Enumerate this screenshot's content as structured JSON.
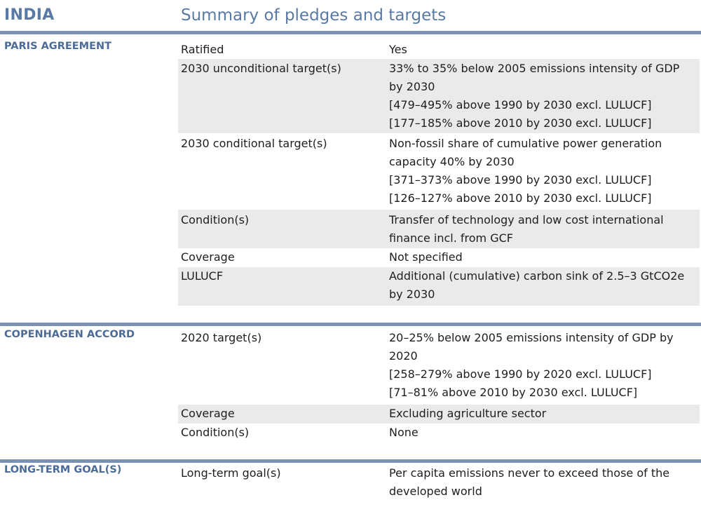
{
  "header": {
    "country": "INDIA",
    "subtitle": "Summary of pledges and targets"
  },
  "sections": [
    {
      "title": "PARIS AGREEMENT",
      "rows": [
        {
          "label": "Ratified",
          "values": [
            "Yes"
          ]
        },
        {
          "label": "2030 unconditional target(s)",
          "values": [
            "33% to 35% below 2005 emissions intensity of GDP by 2030",
            "[479–495% above 1990 by 2030 excl. LULUCF]",
            "[177–185% above 2010 by 2030 excl. LULUCF]"
          ]
        },
        {
          "label": "2030 conditional target(s)",
          "values": [
            "Non-fossil share of cumulative power generation capacity 40% by 2030",
            "[371–373% above 1990 by 2030 excl. LULUCF]",
            "[126–127% above 2010 by 2030 excl. LULUCF]"
          ]
        },
        {
          "label": "Condition(s)",
          "values": [
            "Transfer of technology and low cost international finance incl. from GCF"
          ]
        },
        {
          "label": "Coverage",
          "values": [
            "Not specified"
          ]
        },
        {
          "label": "LULUCF",
          "values": [
            "Additional (cumulative) carbon sink of 2.5–3 GtCO2e by 2030"
          ]
        }
      ]
    },
    {
      "title": "COPENHAGEN ACCORD",
      "rows": [
        {
          "label": "2020 target(s)",
          "values": [
            "20–25% below 2005 emissions intensity of GDP by 2020",
            "[258–279% above 1990 by 2020 excl. LULUCF]",
            "[71–81% above 2010 by 2030 excl. LULUCF]"
          ]
        },
        {
          "label": "Coverage",
          "values": [
            "Excluding agriculture sector"
          ]
        },
        {
          "label": "Condition(s)",
          "values": [
            "None"
          ]
        }
      ]
    },
    {
      "title": "LONG-TERM GOAL(S)",
      "rows": [
        {
          "label": "Long-term goal(s)",
          "values": [
            "Per capita emissions never to exceed those of the developed world"
          ]
        }
      ]
    }
  ]
}
